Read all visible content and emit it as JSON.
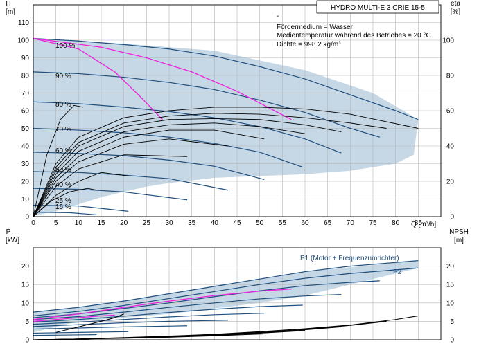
{
  "colors": {
    "envelope": "#c6d7e5",
    "curve": "#1f4f7e",
    "limit": "#ee22dd",
    "eta": "#000000",
    "npsh": "#000000",
    "frame": "#000000"
  },
  "chart_data": [
    {
      "type": "line",
      "title": "HYDRO MULTI-E 3 CRIE 15-5",
      "info": [
        "-",
        "Fördermedium = Wasser",
        "Medientemperatur während des Betriebes = 20 °C",
        "Dichte = 998.2 kg/m³"
      ],
      "xlabel": "Q [m³/h]",
      "ylabel": "H",
      "ylabel_unit": "[m]",
      "y2label": "eta",
      "y2label_unit": "[%]",
      "xlim": [
        0,
        90
      ],
      "ylim": [
        0,
        120
      ],
      "y2lim": [
        0,
        120
      ],
      "x_ticks": [
        "0",
        "5",
        "10",
        "15",
        "20",
        "25",
        "30",
        "35",
        "40",
        "45",
        "50",
        "55",
        "60",
        "65",
        "70",
        "75",
        "80",
        "85"
      ],
      "y_ticks": [
        "0",
        "10",
        "20",
        "30",
        "40",
        "50",
        "60",
        "70",
        "80",
        "90",
        "100",
        "110"
      ],
      "y2_ticks": [
        "0",
        "20",
        "40",
        "60",
        "80",
        "100"
      ],
      "grid": true,
      "envelope": [
        [
          0,
          101
        ],
        [
          20,
          98
        ],
        [
          40,
          94
        ],
        [
          60,
          83
        ],
        [
          75,
          70
        ],
        [
          85,
          55
        ],
        [
          84,
          35
        ],
        [
          80,
          30
        ],
        [
          70,
          26
        ],
        [
          60,
          24
        ],
        [
          50,
          23
        ],
        [
          40,
          22
        ],
        [
          30,
          19
        ],
        [
          25,
          17
        ],
        [
          20,
          14
        ],
        [
          15,
          11
        ],
        [
          10,
          7
        ],
        [
          5,
          3
        ],
        [
          0,
          0.5
        ]
      ],
      "curve_labels": [
        "100 %",
        "90 %",
        "80 %",
        "70 %",
        "60 %",
        "50 %",
        "40 %",
        "25 %",
        "16 %"
      ],
      "series": [
        {
          "name": "100 %",
          "role": "head",
          "x": [
            0,
            10,
            20,
            30,
            40,
            50,
            60,
            70,
            80,
            85
          ],
          "y": [
            101,
            99.5,
            97.5,
            95,
            91,
            85,
            78,
            69,
            60,
            55
          ]
        },
        {
          "name": "90 %",
          "role": "head",
          "x": [
            0,
            10,
            20,
            30,
            40,
            50,
            60,
            70,
            76.5
          ],
          "y": [
            82,
            81,
            79,
            76,
            72,
            66,
            59,
            50,
            45
          ]
        },
        {
          "name": "80 %",
          "role": "head",
          "x": [
            0,
            10,
            20,
            30,
            40,
            50,
            60,
            68
          ],
          "y": [
            65,
            64,
            62,
            59.5,
            56,
            51,
            44,
            36
          ]
        },
        {
          "name": "70 %",
          "role": "head",
          "x": [
            0,
            10,
            20,
            30,
            40,
            50,
            59.5
          ],
          "y": [
            50,
            49,
            47.5,
            45,
            41.5,
            36.5,
            28
          ]
        },
        {
          "name": "60 %",
          "role": "head",
          "x": [
            0,
            10,
            20,
            30,
            40,
            51
          ],
          "y": [
            36.5,
            35.8,
            34.5,
            32,
            28.5,
            21
          ]
        },
        {
          "name": "50 %",
          "role": "head",
          "x": [
            0,
            10,
            20,
            30,
            43
          ],
          "y": [
            25.5,
            25,
            23.5,
            21.5,
            15
          ]
        },
        {
          "name": "40 %",
          "role": "head",
          "x": [
            0,
            10,
            20,
            34
          ],
          "y": [
            16,
            15.5,
            14,
            9.5
          ]
        },
        {
          "name": "25 %",
          "role": "head",
          "x": [
            0,
            10,
            21
          ],
          "y": [
            6.5,
            6,
            3
          ]
        },
        {
          "name": "16 %",
          "role": "head",
          "x": [
            0,
            8,
            14
          ],
          "y": [
            2.5,
            2.2,
            1
          ]
        },
        {
          "name": "",
          "role": "limit",
          "x": [
            0,
            10,
            18,
            24,
            28.5
          ],
          "y": [
            101,
            95,
            82,
            67,
            55
          ]
        },
        {
          "name": "",
          "role": "limit",
          "x": [
            0,
            15,
            25,
            35,
            45,
            57
          ],
          "y": [
            101,
            96,
            90,
            82,
            71,
            55
          ]
        },
        {
          "name": "",
          "role": "eta",
          "x": [
            0,
            5,
            10,
            20,
            30,
            40,
            50,
            60,
            70,
            85
          ],
          "y": [
            0,
            30,
            45,
            56,
            60,
            62,
            62,
            61,
            58,
            50
          ]
        },
        {
          "name": "",
          "role": "eta",
          "x": [
            0,
            5,
            10,
            20,
            30,
            40,
            50,
            60,
            70,
            78
          ],
          "y": [
            0,
            28,
            42,
            53,
            57,
            58.5,
            58,
            56,
            53,
            50
          ]
        },
        {
          "name": "",
          "role": "eta",
          "x": [
            0,
            5,
            10,
            20,
            30,
            40,
            50,
            60,
            68
          ],
          "y": [
            0,
            26,
            40,
            51,
            55,
            55.5,
            55,
            52,
            48
          ]
        },
        {
          "name": "",
          "role": "eta",
          "x": [
            0,
            5,
            10,
            20,
            30,
            40,
            50,
            60
          ],
          "y": [
            0,
            24,
            37,
            48,
            52,
            53,
            51,
            47
          ]
        },
        {
          "name": "",
          "role": "eta",
          "x": [
            0,
            5,
            10,
            20,
            30,
            40,
            51
          ],
          "y": [
            0,
            22,
            34,
            45,
            49,
            49,
            44
          ]
        },
        {
          "name": "",
          "role": "eta",
          "x": [
            0,
            5,
            10,
            20,
            30,
            43
          ],
          "y": [
            0,
            20,
            31,
            41,
            44,
            40
          ]
        },
        {
          "name": "",
          "role": "eta",
          "x": [
            0,
            5,
            10,
            20,
            34
          ],
          "y": [
            0,
            17,
            27,
            35,
            34
          ]
        },
        {
          "name": "",
          "role": "eta",
          "x": [
            0,
            5,
            10,
            15,
            21
          ],
          "y": [
            0,
            12,
            20,
            25,
            23
          ]
        },
        {
          "name": "",
          "role": "eta",
          "x": [
            0,
            4,
            8,
            12,
            14
          ],
          "y": [
            0,
            9,
            14,
            16,
            15
          ]
        },
        {
          "name": "",
          "role": "eta",
          "x": [
            0,
            3,
            6,
            9,
            11
          ],
          "y": [
            0,
            35,
            55,
            63,
            62
          ]
        }
      ]
    },
    {
      "type": "line",
      "xlabel": "",
      "ylabel": "P",
      "ylabel_unit": "[kW]",
      "y2label": "NPSH",
      "y2label_unit": "[m]",
      "xlim": [
        0,
        90
      ],
      "ylim": [
        0,
        25
      ],
      "y2lim": [
        0,
        25
      ],
      "y_ticks": [
        "0",
        "5",
        "10",
        "15",
        "20"
      ],
      "y2_ticks": [
        "0",
        "5",
        "10",
        "15",
        "20"
      ],
      "grid": true,
      "envelope": [
        [
          0,
          7.5
        ],
        [
          20,
          10.5
        ],
        [
          40,
          14.5
        ],
        [
          60,
          18.5
        ],
        [
          85,
          21.5
        ],
        [
          85,
          19.5
        ],
        [
          80,
          18
        ],
        [
          70,
          15
        ],
        [
          60,
          12
        ],
        [
          50,
          10
        ],
        [
          40,
          8.5
        ],
        [
          30,
          7
        ],
        [
          20,
          6
        ],
        [
          10,
          5
        ],
        [
          0,
          2
        ]
      ],
      "series": [
        {
          "name": "P1 (Motor + Frequenzumrichter)",
          "role": "power",
          "x": [
            0,
            10,
            20,
            30,
            40,
            50,
            60,
            70,
            85
          ],
          "y": [
            7.5,
            8.8,
            10.5,
            12.5,
            14.5,
            16.5,
            18.5,
            20,
            21.5
          ]
        },
        {
          "name": "P2",
          "role": "power",
          "x": [
            0,
            10,
            20,
            30,
            40,
            50,
            60,
            70,
            85
          ],
          "y": [
            6.5,
            7.7,
            9.3,
            11.2,
            13.1,
            15,
            16.7,
            18,
            19.5
          ]
        },
        {
          "name": "",
          "role": "power",
          "x": [
            0,
            10,
            20,
            30,
            40,
            50,
            60,
            70,
            76.5
          ],
          "y": [
            6,
            7,
            8.5,
            10,
            11.7,
            13.3,
            14.7,
            15.6,
            16
          ]
        },
        {
          "name": "",
          "role": "power",
          "x": [
            0,
            10,
            20,
            30,
            40,
            50,
            60,
            68
          ],
          "y": [
            5.5,
            6.3,
            7.5,
            8.8,
            10,
            11.1,
            11.9,
            12.3
          ]
        },
        {
          "name": "",
          "role": "power",
          "x": [
            0,
            10,
            20,
            30,
            40,
            50,
            59.5
          ],
          "y": [
            4.8,
            5.5,
            6.4,
            7.4,
            8.3,
            9,
            9.4
          ]
        },
        {
          "name": "",
          "role": "power",
          "x": [
            0,
            10,
            20,
            30,
            40,
            51
          ],
          "y": [
            4.2,
            4.8,
            5.5,
            6.2,
            6.8,
            7.2
          ]
        },
        {
          "name": "",
          "role": "power",
          "x": [
            0,
            10,
            20,
            30,
            43
          ],
          "y": [
            3.6,
            4.1,
            4.6,
            5,
            5.3
          ]
        },
        {
          "name": "",
          "role": "power",
          "x": [
            0,
            10,
            20,
            34
          ],
          "y": [
            2.9,
            3.2,
            3.5,
            3.8
          ]
        },
        {
          "name": "",
          "role": "power",
          "x": [
            0,
            10,
            21
          ],
          "y": [
            1.8,
            2,
            2.2
          ]
        },
        {
          "name": "",
          "role": "power",
          "x": [
            0,
            8,
            14
          ],
          "y": [
            1.2,
            1.3,
            1.4
          ]
        },
        {
          "name": "",
          "role": "limit",
          "x": [
            0,
            8,
            14,
            18
          ],
          "y": [
            5,
            5.8,
            6.4,
            6.7
          ]
        },
        {
          "name": "",
          "role": "limit",
          "x": [
            0,
            10,
            20,
            30,
            40,
            50,
            57
          ],
          "y": [
            5.5,
            7,
            8.8,
            10.5,
            12,
            13.2,
            13.8
          ]
        },
        {
          "name": "",
          "role": "npsh",
          "x": [
            0,
            10,
            20,
            30,
            40,
            50,
            60,
            70,
            80,
            85
          ],
          "y": [
            0,
            0.2,
            0.6,
            1,
            1.5,
            2.2,
            3,
            4,
            5.5,
            6.5
          ]
        },
        {
          "name": "",
          "role": "npsh",
          "x": [
            0,
            10,
            20,
            30,
            40,
            50,
            60,
            70,
            78
          ],
          "y": [
            0,
            0.2,
            0.5,
            0.9,
            1.4,
            2,
            2.8,
            3.9,
            5
          ]
        },
        {
          "name": "",
          "role": "npsh",
          "x": [
            0,
            10,
            20,
            30,
            40,
            50,
            60,
            68
          ],
          "y": [
            0,
            0.2,
            0.5,
            0.9,
            1.3,
            1.9,
            2.7,
            3.5
          ]
        },
        {
          "name": "",
          "role": "npsh",
          "x": [
            0,
            10,
            20,
            30,
            40,
            50,
            60
          ],
          "y": [
            0,
            0.2,
            0.5,
            0.8,
            1.2,
            1.8,
            2.5
          ]
        },
        {
          "name": "",
          "role": "npsh",
          "x": [
            0,
            10,
            20,
            30,
            40,
            51
          ],
          "y": [
            0,
            0.2,
            0.4,
            0.7,
            1.1,
            1.6
          ]
        },
        {
          "name": "",
          "role": "npsh",
          "x": [
            5,
            10,
            15,
            18,
            20
          ],
          "y": [
            2,
            3.5,
            5,
            6,
            7
          ]
        }
      ]
    }
  ]
}
